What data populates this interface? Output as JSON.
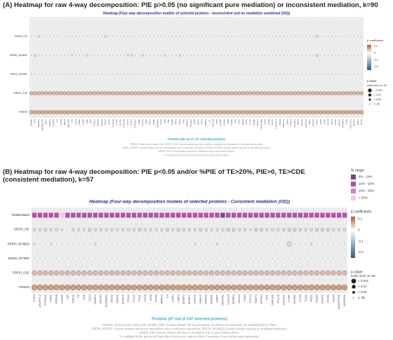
{
  "panel_a": {
    "title": "(A) Heatmap for raw 4-way decomposition: PIE p>0.05 (no significant pure mediation) or inconsistent mediation, k=90",
    "heatmap_title": "Heatmap (Four-way decomposition models of selected proteins - inconsistent and no mediation combined (OD))",
    "x_label": "Proteins (90 out of 147 selected proteins)",
    "categories": [
      "BAMBI",
      "PTN",
      "WFDC2",
      "TNFRSF11B",
      "SOST",
      "SPON1",
      "RTN4R",
      "PI3",
      "NCAN",
      "MSLN",
      "MEGF10",
      "LTA",
      "KLK4",
      "ITGB2",
      "IL2RA",
      "HGF",
      "GP6",
      "FCRL2",
      "EPHB6",
      "EDA2R",
      "DSC2",
      "DKK3",
      "CXCL16",
      "CTSV",
      "CNTN5",
      "CLEC4D",
      "CHIT1",
      "CDH3",
      "CD300LF",
      "CD22",
      "CALCA",
      "BOC",
      "AOC3",
      "AMBP",
      "ADAM23",
      "ACP5",
      "TFPI",
      "TNC",
      "TGFBI",
      "SPP1",
      "SELE",
      "REN",
      "PRSS2",
      "PLA2G7",
      "OMD",
      "NRP1",
      "NID2",
      "MMP9",
      "LPL",
      "LGALS9",
      "KIM1",
      "IL18BP",
      "ICAM2",
      "GRN",
      "FURIN",
      "FAS",
      "ENG",
      "EGFR",
      "DLK1",
      "CTSD",
      "COMP",
      "CHI3L1",
      "CEACAM8",
      "CD93",
      "CD59",
      "CCL15",
      "C1QTNF1",
      "APOM",
      "ANGPT2",
      "TIMP4",
      "THBS4",
      "SCARF2",
      "RETN",
      "PAPPA",
      "NOTCH3",
      "NEFL",
      "MFAP5",
      "LRP11",
      "KLK6",
      "IL1R2",
      "IGF2R",
      "HAO1",
      "GAS6",
      "FBLN2",
      "EFEMP1",
      "CTSZ",
      "COL18A1",
      "CNTN1",
      "CES1",
      "ACAN"
    ],
    "rows": [
      {
        "name": "ERERI_PIE",
        "values": [
          0,
          0,
          0.01,
          0,
          0,
          0,
          0,
          0,
          0,
          0,
          0,
          0,
          0,
          0,
          0,
          0,
          0,
          0,
          0,
          0,
          0.01,
          0,
          0,
          0,
          0,
          0,
          0,
          0,
          0,
          0,
          0,
          0,
          0,
          0,
          0,
          0,
          0,
          0,
          0,
          0,
          0,
          0,
          0,
          0,
          0,
          0,
          0,
          0,
          0,
          0,
          0,
          0,
          0,
          0,
          0,
          0,
          0,
          0,
          0,
          0,
          0,
          0,
          0,
          0,
          0,
          0,
          0,
          0,
          0,
          0,
          0,
          0,
          0,
          0,
          0,
          0,
          0,
          0.02,
          0,
          0,
          0,
          0,
          0,
          0,
          0,
          0,
          0,
          0,
          0,
          0
        ]
      },
      {
        "name": "ERERI_INTMED",
        "values": [
          0,
          0.02,
          0,
          0,
          0,
          0,
          0,
          0,
          0,
          0,
          0,
          0.01,
          0,
          0,
          0,
          0.01,
          0,
          0,
          0,
          0,
          0,
          0,
          0,
          0,
          0,
          0,
          0.01,
          0.01,
          0,
          0,
          0.01,
          0,
          0,
          0,
          0,
          0,
          0.01,
          0,
          0,
          0,
          0.01,
          0,
          0,
          0,
          0,
          0,
          0,
          0,
          0,
          0,
          0,
          0,
          0,
          0,
          0,
          0,
          0,
          0,
          0,
          0,
          0,
          0,
          0,
          0,
          0,
          0,
          0,
          0,
          0,
          0,
          0,
          0,
          0,
          0,
          0,
          0,
          0,
          0.02,
          0,
          0,
          0,
          0,
          0,
          0,
          0,
          0,
          0,
          0,
          0,
          0
        ]
      },
      {
        "name": "ERERI_INTREF",
        "values": [
          0,
          0,
          0,
          0,
          0,
          0,
          0,
          0,
          0,
          0,
          0,
          0,
          0,
          0,
          0,
          0,
          0,
          0,
          0,
          0,
          0,
          0,
          0,
          0,
          0,
          0,
          0,
          0,
          0,
          0,
          0,
          0,
          0,
          0,
          0,
          0,
          0,
          0,
          0,
          0,
          0,
          0,
          0,
          0,
          0,
          0,
          0,
          0,
          0,
          0,
          0,
          0,
          0,
          0,
          0,
          0,
          0,
          0,
          0,
          0,
          0,
          0,
          0,
          0,
          0,
          0,
          0,
          0,
          0,
          0,
          0,
          0,
          0,
          0,
          0,
          0,
          0,
          0,
          0,
          0,
          0,
          0,
          0,
          0,
          0,
          0,
          0,
          0,
          0,
          0
        ]
      },
      {
        "name": "ERERI_CDE",
        "values": [
          0.05,
          0.05,
          0.05,
          0.05,
          0.05,
          0.05,
          0.05,
          0.05,
          0.05,
          0.05,
          0.05,
          0.05,
          0.05,
          0.05,
          0.05,
          0.05,
          0.05,
          0.05,
          0.05,
          0.05,
          0.05,
          0.05,
          0.05,
          0.05,
          0.05,
          0.05,
          0.05,
          0.05,
          0.05,
          0.05,
          0.05,
          0.05,
          0.05,
          0.05,
          0.05,
          0.05,
          0.05,
          0.05,
          0.05,
          0.05,
          0.05,
          0.05,
          0.05,
          0.05,
          0.05,
          0.05,
          0.05,
          0.05,
          0.05,
          0.05,
          0.05,
          0.05,
          0.05,
          0.05,
          0.05,
          0.05,
          0.05,
          0.05,
          0.05,
          0.05,
          0.05,
          0.05,
          0.05,
          0.05,
          0.05,
          0.05,
          0.05,
          0.05,
          0.05,
          0.05,
          0.05,
          0.05,
          0.05,
          0.05,
          0.05,
          0.05,
          0.05,
          0.05,
          0.05,
          0.05,
          0.05,
          0.05,
          0.05,
          0.05,
          0.05,
          0.05,
          0.05,
          0.05,
          0.05,
          0.05
        ]
      },
      {
        "name": "TERERI",
        "values": [
          0.06,
          0.06,
          0.06,
          0.06,
          0.06,
          0.06,
          0.06,
          0.06,
          0.06,
          0.06,
          0.06,
          0.06,
          0.06,
          0.06,
          0.06,
          0.06,
          0.06,
          0.06,
          0.06,
          0.06,
          0.06,
          0.06,
          0.06,
          0.06,
          0.06,
          0.06,
          0.06,
          0.06,
          0.06,
          0.06,
          0.06,
          0.06,
          0.06,
          0.06,
          0.06,
          0.06,
          0.06,
          0.06,
          0.06,
          0.06,
          0.06,
          0.06,
          0.06,
          0.06,
          0.06,
          0.06,
          0.06,
          0.06,
          0.06,
          0.06,
          0.06,
          0.06,
          0.06,
          0.06,
          0.06,
          0.06,
          0.06,
          0.06,
          0.06,
          0.06,
          0.06,
          0.06,
          0.06,
          0.06,
          0.06,
          0.06,
          0.06,
          0.06,
          0.06,
          0.06,
          0.06,
          0.06,
          0.06,
          0.06,
          0.06,
          0.06,
          0.06,
          0.06,
          0.06,
          0.06,
          0.06,
          0.06,
          0.06,
          0.06,
          0.06,
          0.06,
          0.06,
          0.06,
          0.06,
          0.06
        ]
      }
    ],
    "beta_legend": {
      "title": "β coefficients",
      "lim": [
        -0.25,
        0.12
      ],
      "ticks": [
        0.1,
        0,
        -0.1,
        -0.2
      ],
      "colors": [
        "#2c5a8f",
        "#ffffff",
        "#b4582a"
      ]
    },
    "p_legend": {
      "title": "p-value",
      "subtitle": "solid circle: p<.05",
      "labels": [
        "< 0.001",
        "< 0.01",
        "< 0.05",
        "≥ .05"
      ]
    },
    "footnotes": [
      "TERERI: Total excess relative risk; ERERI_CDE: Excess relative risk due to neither mediation nor interaction or controlled direct effect.",
      "ERERI_INTREF: Excess relative risk due to interaction only or reference interaction; ERERI_INTMED: Excess relative risk due to mediated interaction.",
      "ERERI_PIE: Excess relative risk due to mediation only or pure indirect effect.",
      "% mediated is the percent of total effect that is pure indirect effect."
    ]
  },
  "panel_b": {
    "title": "(B) Heatmap for raw 4-way decomposition: PIE p<0.05 and/or %PIE of TE>20%, PIE>0, TE>CDE (consistent mediation), k=57",
    "heatmap_title": "Heatmap (Four-way decomposition models of selected proteins - Consistent mediation (OD))",
    "x_label": "Proteins (57 out of 147 selected proteins)",
    "categories": [
      "CTSS",
      "ANGPTL2",
      "PTPRN2",
      "VWA1",
      "PRSS8",
      "LILRA5",
      "LEP",
      "FGF21",
      "F5",
      "CFB",
      "CA14",
      "RAMP1",
      "SSC5D",
      "SCGB3A2",
      "SNCG",
      "SFRP1",
      "IGFBP2",
      "PON3",
      "PLIN1",
      "PLAT",
      "CST5",
      "ADM",
      "NPPB",
      "MMP12",
      "IL6",
      "IL1RN",
      "LTBP2",
      "IGFBP1",
      "IGFBP7",
      "GDF15",
      "PRELP",
      "HSPG2",
      "ROBO1",
      "MMP7",
      "HAVCR1",
      "LGALS4",
      "IGFBP4",
      "CD163",
      "PIGR",
      "FSTL3",
      "FABP4",
      "EPHA2",
      "CPE",
      "CRELD1",
      "CCL18",
      "COL4A1",
      "CLMP",
      "CDHR2",
      "CCN4",
      "CA5A",
      "ACE2",
      "AGER",
      "AZGP1",
      "AHSG",
      "ADH4",
      "ADAMTS15",
      "ADGRG1"
    ],
    "pct_range": {
      "row_label": "TotalMediated",
      "title": "% range",
      "levels": [
        "5% - 10%",
        "10% - 20%",
        "20% - 50%",
        "> 50%"
      ],
      "colors": [
        "#6b4c8c",
        "#b44fa8",
        "#d77fc4",
        "#f0c8e6"
      ],
      "values": [
        1,
        1,
        1,
        1,
        1,
        3,
        1,
        1,
        1,
        1,
        1,
        1,
        1,
        1,
        1,
        1,
        1,
        1,
        1,
        1,
        1,
        1,
        1,
        1,
        1,
        1,
        1,
        1,
        1,
        1,
        1,
        1,
        1,
        1,
        0,
        1,
        1,
        1,
        1,
        1,
        1,
        1,
        1,
        1,
        1,
        1,
        1,
        1,
        1,
        1,
        1,
        1,
        1,
        1,
        1,
        1,
        1
      ]
    },
    "rows": [
      {
        "name": "ERERI_PIE",
        "values": [
          0.02,
          0.02,
          0.03,
          0.02,
          0.02,
          0.01,
          0,
          0.02,
          0.02,
          0.02,
          0.03,
          0.02,
          0.02,
          0.02,
          0.02,
          0.02,
          0.02,
          0.02,
          0.02,
          0.03,
          0.02,
          0.02,
          0.02,
          0.02,
          0.03,
          0.02,
          0.03,
          0.02,
          0.02,
          0.02,
          0.03,
          0.02,
          0.02,
          0.02,
          0.02,
          0.03,
          0.03,
          0.02,
          0.02,
          0.01,
          0.03,
          0.03,
          0.02,
          0.02,
          0.02,
          0.02,
          0.03,
          0.03,
          0.02,
          0.02,
          0.02,
          0.03,
          0.03,
          0.03,
          0.02,
          0.02,
          0.02
        ]
      },
      {
        "name": "ERERI_INTMED",
        "values": [
          0.01,
          0,
          0,
          0.01,
          0,
          0,
          0,
          0,
          0,
          0,
          0,
          0.01,
          0,
          0,
          0,
          0,
          0,
          0,
          0,
          0,
          0,
          0,
          0,
          0,
          0,
          0,
          0,
          0,
          0,
          0.01,
          0,
          0,
          0,
          0.01,
          0,
          0,
          0,
          0,
          0,
          0,
          0,
          0,
          0,
          0,
          0,
          0,
          -0.05,
          0,
          0,
          0,
          0.01,
          0,
          0,
          0,
          0,
          0,
          0
        ]
      },
      {
        "name": "ERERI_INTREF",
        "values": [
          0,
          0,
          0,
          0,
          0,
          0,
          0,
          0,
          0,
          0,
          0,
          0,
          0,
          0,
          0,
          0,
          0,
          0,
          0,
          0,
          0,
          0,
          0,
          0,
          0,
          0,
          0,
          0,
          0,
          0,
          0,
          0,
          0,
          0,
          0,
          0,
          0,
          0,
          0,
          0,
          0,
          0,
          0,
          0,
          0,
          0,
          0,
          0,
          0,
          0,
          0,
          0,
          0,
          0,
          0,
          0,
          0
        ]
      },
      {
        "name": "ERERI_CDE",
        "values": [
          0.05,
          0.05,
          0.05,
          0.05,
          0.05,
          0.05,
          0.05,
          0.05,
          0.05,
          0.05,
          0.05,
          0.05,
          0.05,
          0.05,
          0.05,
          0.05,
          0.05,
          0.05,
          0.05,
          0.05,
          0.05,
          0.05,
          0.05,
          0.05,
          0.05,
          0.05,
          0.05,
          0.05,
          0.05,
          0.05,
          0.05,
          0.05,
          0.05,
          0.05,
          0.05,
          0.05,
          0.05,
          0.05,
          0.05,
          0.05,
          0.05,
          0.05,
          0.05,
          0.05,
          0.05,
          0.05,
          0.05,
          0.05,
          0.05,
          0.05,
          0.05,
          0.05,
          0.05,
          0.05,
          0.05,
          0.05,
          0.05
        ]
      },
      {
        "name": "TERERI",
        "values": [
          0.07,
          0.07,
          0.07,
          0.07,
          0.07,
          0.07,
          0.07,
          0.07,
          0.07,
          0.07,
          0.07,
          0.07,
          0.07,
          0.07,
          0.07,
          0.07,
          0.07,
          0.07,
          0.07,
          0.07,
          0.07,
          0.07,
          0.07,
          0.07,
          0.07,
          0.07,
          0.07,
          0.07,
          0.07,
          0.07,
          0.07,
          0.07,
          0.07,
          0.07,
          0.07,
          0.07,
          0.07,
          0.07,
          0.07,
          0.07,
          0.07,
          0.07,
          0.07,
          0.07,
          0.07,
          0.07,
          0.07,
          0.07,
          0.07,
          0.07,
          0.07,
          0.07,
          0.07,
          0.07,
          0.07,
          0.07,
          0.07
        ]
      }
    ],
    "beta_legend": {
      "title": "β coefficients",
      "lim": [
        -0.25,
        0.12
      ],
      "ticks": [
        0.1,
        0,
        -0.1,
        -0.2
      ],
      "colors": [
        "#2c5a8f",
        "#ffffff",
        "#b4582a"
      ]
    },
    "p_legend": {
      "title": "p-value",
      "subtitle": "solid circle: p<.05",
      "labels": [
        "< 0.001",
        "< 0.01",
        "< 0.05",
        "≥ .05"
      ]
    },
    "footnotes": [
      "TERERI: Total excess relative risk; ERERI_CDE: Excess relative risk due to neither mediation nor interaction or controlled direct effect.",
      "ERERI_INTREF: Excess relative risk due to interaction only or reference interaction; ERERI_INTMED: Excess relative risk due to mediated interaction.",
      "ERERI_PIE: Excess relative risk due to mediation only or pure indirect effect.",
      "% mediated is the percent of total effect that is pure indirect effect. Heatmap of zero values were generated."
    ]
  }
}
